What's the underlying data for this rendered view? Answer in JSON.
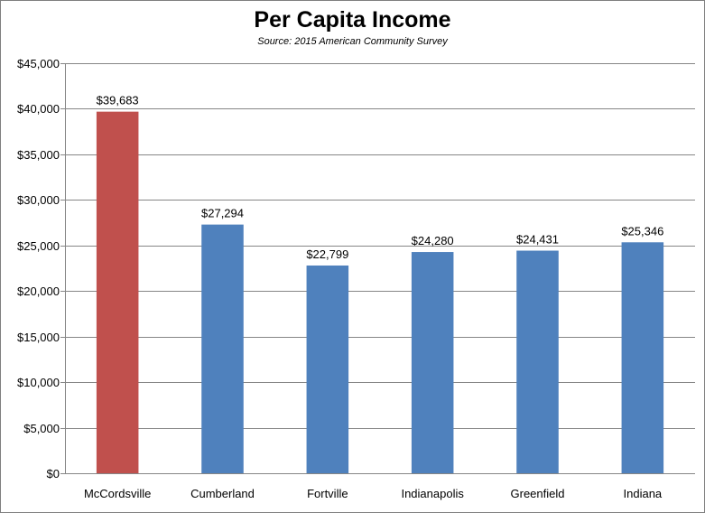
{
  "chart_data": {
    "type": "bar",
    "title": "Per Capita Income",
    "subtitle": "Source: 2015 American Community Survey",
    "categories": [
      "McCordsville",
      "Cumberland",
      "Fortville",
      "Indianapolis",
      "Greenfield",
      "Indiana"
    ],
    "values": [
      39683,
      27294,
      22799,
      24280,
      24431,
      25346
    ],
    "data_labels": [
      "$39,683",
      "$27,294",
      "$22,799",
      "$24,280",
      "$24,431",
      "$25,346"
    ],
    "bar_colors": [
      "#c0504d",
      "#4f81bd",
      "#4f81bd",
      "#4f81bd",
      "#4f81bd",
      "#4f81bd"
    ],
    "ylim": [
      0,
      45000
    ],
    "ytick_values": [
      0,
      5000,
      10000,
      15000,
      20000,
      25000,
      30000,
      35000,
      40000,
      45000
    ],
    "ytick_labels": [
      "$0",
      "$5,000",
      "$10,000",
      "$15,000",
      "$20,000",
      "$25,000",
      "$30,000",
      "$35,000",
      "$40,000",
      "$45,000"
    ],
    "xlabel": "",
    "ylabel": "",
    "grid": true,
    "legend": "none"
  }
}
